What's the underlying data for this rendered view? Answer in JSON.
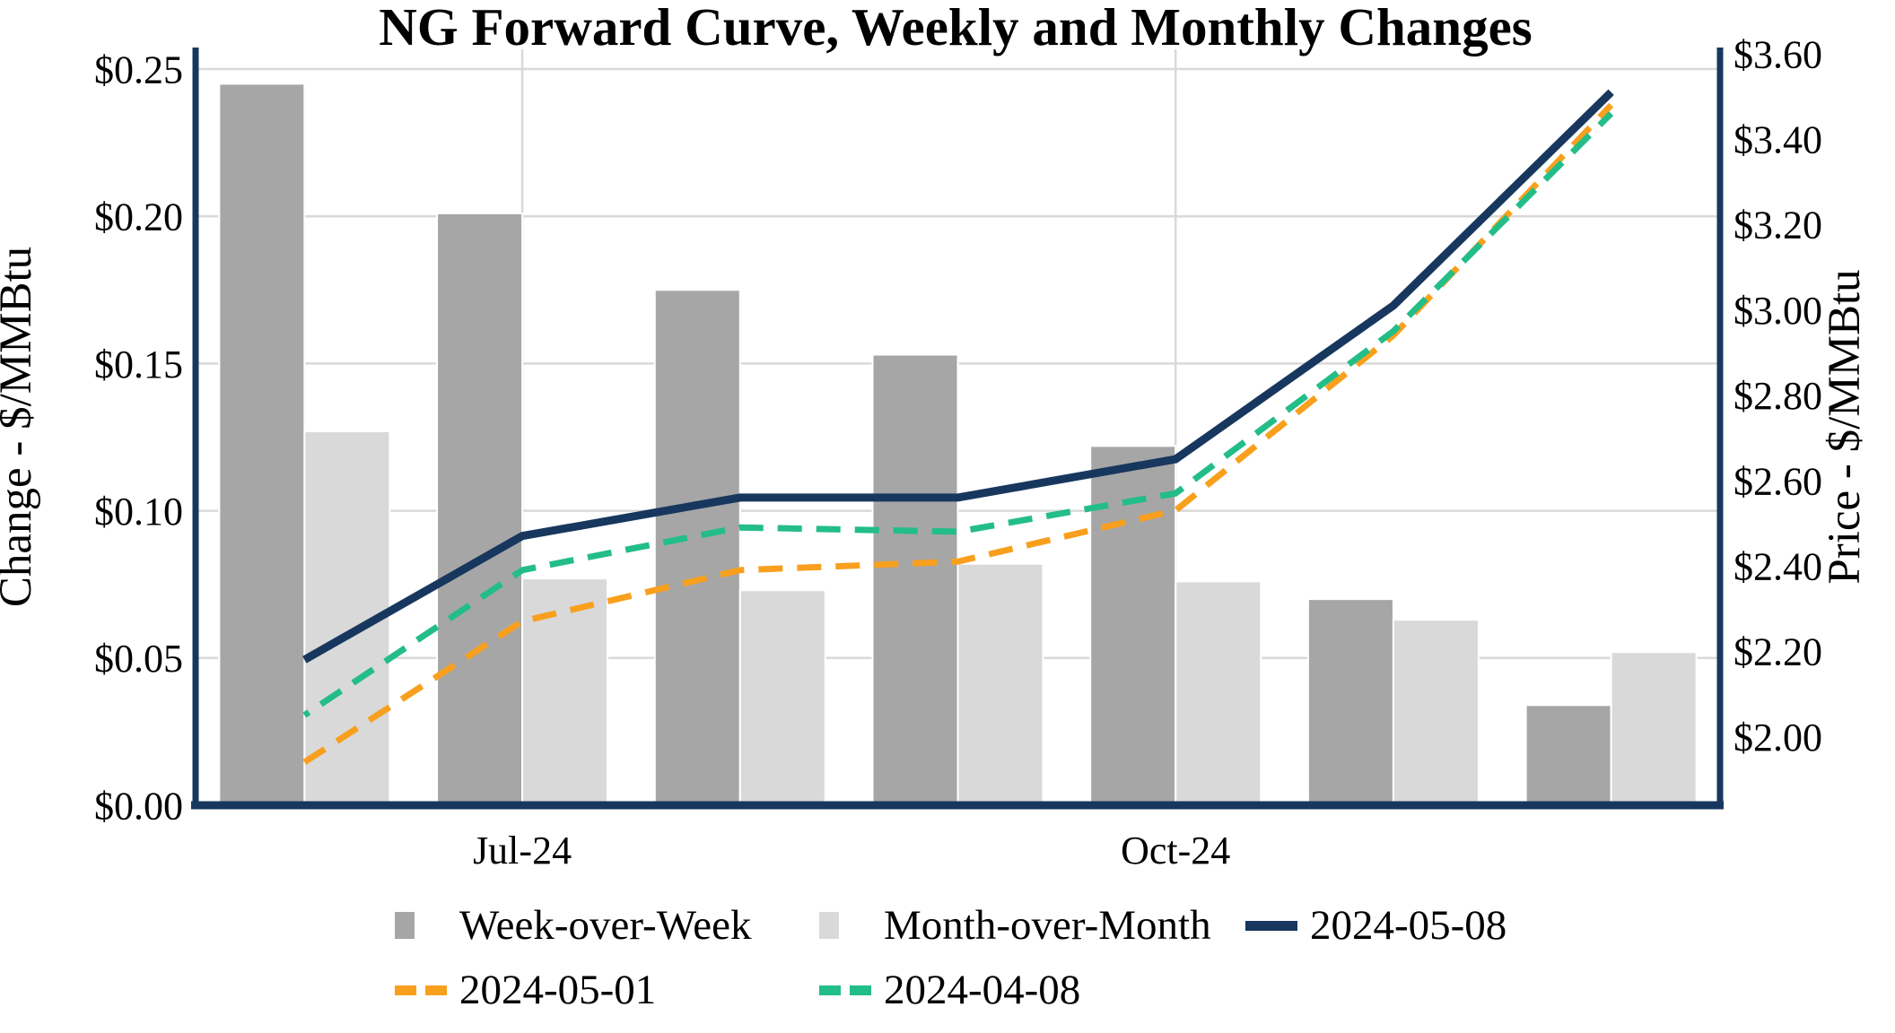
{
  "page": {
    "background": "#FFFFFF"
  },
  "chart_data": {
    "type": "combo-bar-line",
    "title": "NG Forward Curve, Weekly and Monthly Changes",
    "num_slots": 7,
    "x_tick_labels": [
      {
        "slot": 1,
        "label": "Jul-24"
      },
      {
        "slot": 4,
        "label": "Oct-24"
      }
    ],
    "left_axis": {
      "title": "Change - $/MMBtu",
      "min": 0,
      "max": 0.2567,
      "tick_values": [
        0,
        0.05,
        0.1,
        0.15,
        0.2,
        0.25
      ],
      "tick_labels": [
        "$0.00",
        "$0.05",
        "$0.10",
        "$0.15",
        "$0.20",
        "$0.25"
      ]
    },
    "right_axis": {
      "title": "Price - $/MMBtu",
      "min": 1.839,
      "max": 3.6105,
      "tick_values": [
        2.0,
        2.2,
        2.4,
        2.6,
        2.8,
        3.0,
        3.2,
        3.4,
        3.6
      ],
      "tick_labels": [
        "$2.00",
        "$2.20",
        "$2.40",
        "$2.60",
        "$2.80",
        "$3.00",
        "$3.20",
        "$3.40",
        "$3.60"
      ]
    },
    "vertical_gridline_slots": [
      1,
      4
    ],
    "bar_series": [
      {
        "name": "Week-over-Week",
        "color": "#A6A6A6",
        "axis": "left",
        "values": [
          0.245,
          0.201,
          0.175,
          0.153,
          0.122,
          0.07,
          0.034
        ]
      },
      {
        "name": "Month-over-Month",
        "color": "#D9D9D9",
        "axis": "left",
        "values": [
          0.127,
          0.077,
          0.073,
          0.082,
          0.076,
          0.063,
          0.052
        ]
      }
    ],
    "line_series": [
      {
        "name": "2024-05-01",
        "color": "#F8A01E",
        "dash": "dashed",
        "axis": "right",
        "values": [
          1.94,
          2.27,
          2.39,
          2.41,
          2.53,
          2.94,
          3.48
        ]
      },
      {
        "name": "2024-04-08",
        "color": "#23BD88",
        "dash": "dashed",
        "axis": "right",
        "values": [
          2.05,
          2.39,
          2.49,
          2.48,
          2.57,
          2.95,
          3.46
        ]
      },
      {
        "name": "2024-05-08",
        "color": "#17375E",
        "dash": "solid",
        "axis": "right",
        "values": [
          2.18,
          2.47,
          2.56,
          2.56,
          2.65,
          3.01,
          3.51
        ]
      }
    ],
    "grid_color": "#D9D9D9",
    "axis_color": "#17375E",
    "legend_position": "bottom"
  }
}
